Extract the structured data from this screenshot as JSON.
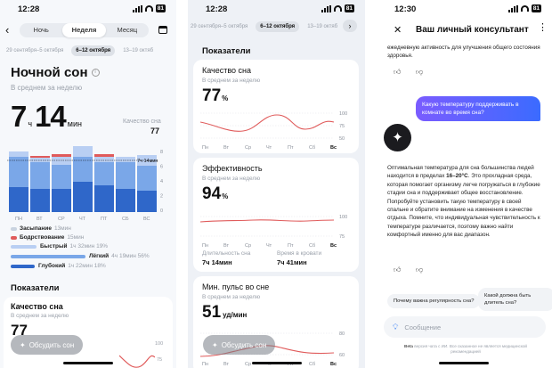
{
  "screen1": {
    "status": {
      "time": "12:28",
      "battery": "81"
    },
    "tabs": [
      {
        "label": "Ночь",
        "active": false
      },
      {
        "label": "Неделя",
        "active": true
      },
      {
        "label": "Месяц",
        "active": false
      }
    ],
    "date_chips": [
      {
        "label": "29 сентября–5 октября",
        "active": false
      },
      {
        "label": "6–12 октября",
        "active": true
      },
      {
        "label": "13–19 октяб",
        "active": false
      }
    ],
    "title": "Ночной сон",
    "subtitle": "В среднем за неделю",
    "big_hours": "7",
    "hours_unit": "ч",
    "big_minutes": "14",
    "minutes_unit": "мин",
    "quality_label": "Качество сна",
    "quality_value": "77",
    "avg_marker": "7ч 14мин",
    "chart": {
      "days": [
        "ПН",
        "ВТ",
        "СР",
        "ЧТ",
        "ПТ",
        "СБ",
        "ВС"
      ],
      "y_ticks": [
        "8",
        "6",
        "4",
        "2",
        "0"
      ],
      "colors": {
        "deep": "#2f67c9",
        "core": "#7aa7e8",
        "rem": "#b9cff3",
        "awake": "#e05b5b"
      }
    },
    "legend": [
      {
        "label": "Засыпание",
        "value": "13мин",
        "pct": "",
        "color": "#c9d3e0",
        "fill": 0.12
      },
      {
        "label": "Бодрствование",
        "value": "15мин",
        "pct": "",
        "color": "#e05b5b",
        "fill": 0.12
      },
      {
        "label": "Быстрый",
        "value": "1ч 32мин",
        "pct": "19%",
        "color": "#b9cff3",
        "fill": 0.19
      },
      {
        "label": "Лёгкий",
        "value": "4ч 19мин",
        "pct": "56%",
        "color": "#7aa7e8",
        "fill": 0.56
      },
      {
        "label": "Глубокий",
        "value": "1ч 22мин",
        "pct": "18%",
        "color": "#2f67c9",
        "fill": 0.18
      }
    ],
    "section_title": "Показатели",
    "card": {
      "title": "Качество сна",
      "subtitle": "В среднем за неделю",
      "value": "77"
    },
    "discuss_button": "Обсудить сон",
    "bottom_ticks": [
      "100",
      "75"
    ]
  },
  "screen2": {
    "status": {
      "time": "12:28",
      "battery": "81"
    },
    "date_chips": [
      {
        "label": "29 сентября–5 октября",
        "active": false
      },
      {
        "label": "6–12 октября",
        "active": true
      },
      {
        "label": "13–19 октяб",
        "active": false
      }
    ],
    "section_title": "Показатели",
    "card_quality": {
      "title": "Качество сна",
      "subtitle": "В среднем за неделю",
      "value": "77",
      "unit": "%",
      "y_ticks": [
        "100",
        "75",
        "50"
      ]
    },
    "card_efficiency": {
      "title": "Эффективность",
      "subtitle": "В среднем за неделю",
      "value": "94",
      "unit": "%",
      "y_ticks": [
        "100",
        "75"
      ],
      "duration_label": "Длительность сна",
      "duration_value": "7ч 14мин",
      "in_bed_label": "Время в кровати",
      "in_bed_value": "7ч 41мин"
    },
    "card_pulse": {
      "title": "Мин. пульс во сне",
      "subtitle": "В среднем за неделю",
      "value": "51",
      "unit": "уд/мин",
      "y_ticks": [
        "80",
        "60"
      ]
    },
    "days": [
      "Пн",
      "Вт",
      "Ср",
      "Чт",
      "Пт",
      "Сб",
      "Вс"
    ],
    "discuss_button": "Обсудить сон"
  },
  "screen3": {
    "status": {
      "time": "12:30",
      "battery": "81"
    },
    "header_title": "Ваш личный консультант",
    "top_text": "ежедневную активность для улучшения общего состояния здоровья.",
    "user_message": "Какую температуру поддерживать в комнате во время сна?",
    "reply_parts": [
      "Оптимальная температура для сна большинства людей находится в пределах ",
      "16–20°С",
      ". Это прохладная среда, которая помогает организму легче погружаться в глубокие стадии сна и поддерживает общее восстановление. Попробуйте установить такую температуру в своей спальне и обратите внимание на изменения в качестве отдыха. Помните, что индивидуальная чувствительность к температуре различается, поэтому важно найти комфортный именно для вас диапазон."
    ],
    "suggestions": [
      "Почему важна регулярность сна?",
      "Какой должна быть длитель сна?"
    ],
    "input_placeholder": "Сообщение",
    "disclaimer_bold": "Beta",
    "disclaimer": " версия чата с ИИ. Все сказанное не является медицинской рекомендацией"
  }
}
